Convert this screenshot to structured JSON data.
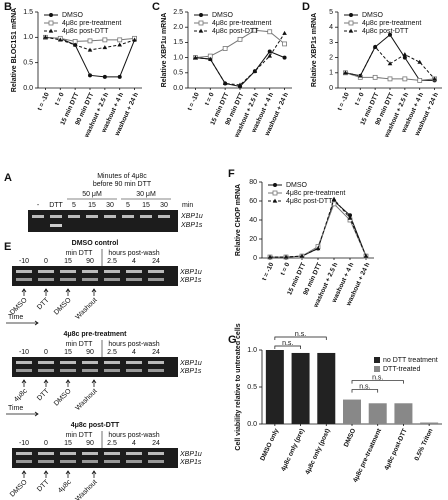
{
  "chart_data": [
    {
      "type": "line",
      "panel_label": "B",
      "ylabel": "Relative BLOC1S1 mRNA",
      "categories": [
        "t = -10",
        "t = 0",
        "15 min DTT",
        "90 min DTT",
        "washout + 2.5 h",
        "washout + 4 h",
        "washout + 24 h"
      ],
      "series": [
        {
          "name": "DMSO",
          "color": "#111111",
          "linestyle": "solid",
          "marker": "circle",
          "values": [
            1.0,
            0.98,
            0.85,
            0.25,
            0.22,
            0.22,
            0.95
          ]
        },
        {
          "name": "4μ8c pre-treatment",
          "color": "#777777",
          "linestyle": "solid",
          "marker": "square",
          "values": [
            1.0,
            0.98,
            0.92,
            0.93,
            0.95,
            0.95,
            0.98
          ]
        },
        {
          "name": "4μ8c post-DTT",
          "color": "#111111",
          "linestyle": "dashed",
          "marker": "triangle",
          "values": [
            1.0,
            0.95,
            0.85,
            0.75,
            0.8,
            0.85,
            0.95
          ]
        }
      ],
      "ylim": [
        0,
        1.5
      ],
      "yticks": [
        {
          "value": 0,
          "label": "0.0"
        },
        0.5,
        {
          "value": 1,
          "label": "1.0"
        },
        1.5
      ],
      "legend": "upper left"
    },
    {
      "type": "line",
      "panel_label": "C",
      "ylabel": "Relative XBP1u mRNA",
      "categories": [
        "t = -10",
        "t = 0",
        "15 min DTT",
        "90 min DTT",
        "washout + 2.5 h",
        "washout + 4 h",
        "washout + 24 h"
      ],
      "series": [
        {
          "name": "DMSO",
          "color": "#111111",
          "linestyle": "solid",
          "marker": "circle",
          "values": [
            1.0,
            0.95,
            0.15,
            0.05,
            0.55,
            1.2,
            1.0
          ]
        },
        {
          "name": "4μ8c pre-treatment",
          "color": "#777777",
          "linestyle": "solid",
          "marker": "square",
          "values": [
            1.0,
            1.05,
            1.3,
            1.6,
            1.9,
            1.85,
            1.45
          ]
        },
        {
          "name": "4μ8c post-DTT",
          "color": "#111111",
          "linestyle": "dashed",
          "marker": "triangle",
          "values": [
            1.0,
            0.95,
            0.15,
            0.1,
            0.55,
            1.05,
            1.8
          ]
        }
      ],
      "ylim": [
        0,
        2.5
      ],
      "yticks": [
        {
          "value": 0,
          "label": "0.0"
        },
        0.5,
        {
          "value": 1,
          "label": "1.0"
        },
        1.5,
        {
          "value": 2,
          "label": "2.0"
        },
        2.5
      ],
      "legend": "upper left"
    },
    {
      "type": "line",
      "panel_label": "D",
      "ylabel": "Relative XBP1s mRNA",
      "categories": [
        "t = -10",
        "t = 0",
        "15 min DTT",
        "90 min DTT",
        "washout + 2.5 h",
        "washout + 4 h",
        "washout + 24 h"
      ],
      "series": [
        {
          "name": "DMSO",
          "color": "#111111",
          "linestyle": "solid",
          "marker": "circle",
          "values": [
            1.0,
            0.8,
            2.7,
            3.5,
            2.0,
            0.5,
            0.5
          ]
        },
        {
          "name": "4μ8c pre-treatment",
          "color": "#777777",
          "linestyle": "solid",
          "marker": "square",
          "values": [
            1.0,
            0.7,
            0.7,
            0.6,
            0.6,
            0.5,
            0.6
          ]
        },
        {
          "name": "4μ8c post-DTT",
          "color": "#111111",
          "linestyle": "dashed",
          "marker": "triangle",
          "values": [
            1.0,
            0.8,
            2.7,
            1.6,
            2.2,
            1.7,
            0.6
          ]
        }
      ],
      "ylim": [
        0,
        5
      ],
      "yticks": [
        0,
        1,
        2,
        3,
        4,
        5
      ],
      "legend": "upper left"
    },
    {
      "type": "line",
      "panel_label": "F",
      "ylabel": "Relative CHOP mRNA",
      "categories": [
        "t = -10",
        "t = 0",
        "15 min DTT",
        "90 min DTT",
        "washout + 2.5 h",
        "washout + 4 h",
        "washout + 24 h"
      ],
      "series": [
        {
          "name": "DMSO",
          "color": "#111111",
          "linestyle": "solid",
          "marker": "circle",
          "values": [
            1,
            1,
            2,
            10,
            60,
            45,
            2
          ]
        },
        {
          "name": "4μ8c pre-treatment",
          "color": "#777777",
          "linestyle": "solid",
          "marker": "square",
          "values": [
            1,
            1,
            2,
            12,
            57,
            40,
            2
          ]
        },
        {
          "name": "4μ8c post-DTT",
          "color": "#111111",
          "linestyle": "dashed",
          "marker": "triangle",
          "values": [
            1,
            1,
            2,
            10,
            62,
            42,
            2
          ]
        }
      ],
      "ylim": [
        0,
        80
      ],
      "yticks": [
        0,
        20,
        40,
        60,
        80
      ],
      "legend": "upper left"
    },
    {
      "type": "bar",
      "panel_label": "G",
      "ylabel": "Cell viability relative to untreated cells",
      "categories": [
        "DMSO only",
        "4μ8c only (pre)",
        "4μ8c only (post)",
        "DMSO",
        "4μ8c pre-treatment",
        "4μ8c post-DTT",
        "0.5% Triton"
      ],
      "values": [
        1.0,
        0.96,
        0.96,
        0.33,
        0.28,
        0.28,
        0.02
      ],
      "colors": [
        "#222222",
        "#222222",
        "#222222",
        "#888888",
        "#888888",
        "#888888",
        "#888888"
      ],
      "legend_entries": [
        {
          "label": "no DTT treatment",
          "color": "#222222"
        },
        {
          "label": "DTT-treated",
          "color": "#888888"
        }
      ],
      "annotations": [
        "n.s.",
        "n.s.",
        "n.s.",
        "n.s."
      ],
      "ylim": [
        0,
        1
      ],
      "yticks": [
        {
          "value": 0,
          "label": "0.0"
        },
        0.5,
        {
          "value": 1,
          "label": "1.0"
        }
      ],
      "legend": "upper right"
    }
  ],
  "gel_a": {
    "panel_label": "A",
    "header": [
      "Minutes of 4μ8c",
      "before 90 min DTT"
    ],
    "groups": [
      "50 μM",
      "30 μM"
    ],
    "lanes": [
      "-",
      "DTT",
      "5",
      "15",
      "30",
      "5",
      "15",
      "30"
    ],
    "unit": "min",
    "bands": [
      "XBP1u",
      "XBP1s"
    ]
  },
  "gel_e": {
    "panel_label": "E",
    "time_label": "Time",
    "blots": [
      {
        "title": "DMSO control",
        "headers": [
          "min DTT",
          "hours post-wash"
        ],
        "lanes": [
          "-10",
          "0",
          "15",
          "90",
          "2.5",
          "4",
          "24"
        ],
        "treatments": [
          "DMSO",
          "DTT",
          "DMSO",
          "Washout"
        ],
        "bands": [
          "XBP1u",
          "XBP1s"
        ]
      },
      {
        "title": "4μ8c pre-treatment",
        "headers": [
          "min DTT",
          "hours post-wash"
        ],
        "lanes": [
          "-10",
          "0",
          "15",
          "90",
          "2.5",
          "4",
          "24"
        ],
        "treatments": [
          "4μ8c",
          "DTT",
          "DMSO",
          "Washout"
        ],
        "bands": [
          "XBP1u",
          "XBP1s"
        ]
      },
      {
        "title": "4μ8c post-DTT",
        "headers": [
          "min DTT",
          "hours post-wash"
        ],
        "lanes": [
          "-10",
          "0",
          "15",
          "90",
          "2.5",
          "4",
          "24"
        ],
        "treatments": [
          "DMSO",
          "DTT",
          "4μ8c",
          "Washout"
        ],
        "bands": [
          "XBP1u",
          "XBP1s"
        ]
      }
    ]
  }
}
